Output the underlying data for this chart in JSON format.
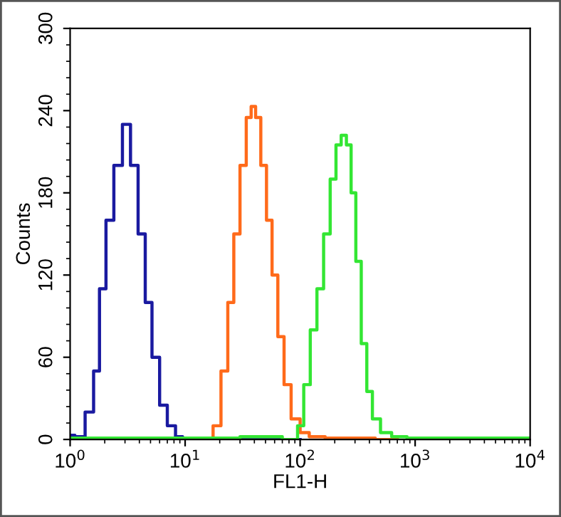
{
  "chart_data": {
    "type": "step",
    "xlabel": "FL1-H",
    "ylabel": "Counts",
    "log": "x",
    "grid": false,
    "legend": false,
    "marker": "none",
    "line_style": "solid",
    "xlim": [
      1,
      10000
    ],
    "xticks": [
      {
        "value": 1,
        "label": "10$^{0}$"
      },
      {
        "value": 10,
        "label": "10$^{1}$"
      },
      {
        "value": 100,
        "label": "10$^{2}$"
      },
      {
        "value": 1000,
        "label": "10$^{3}$"
      },
      {
        "value": 10000,
        "label": "10$^{4}$"
      }
    ],
    "ylim": [
      0,
      300
    ],
    "yticks": [
      0,
      60,
      120,
      180,
      240,
      300
    ],
    "series": [
      {
        "color": "#1a1aa0",
        "x": [
          1,
          1.2,
          1.5,
          1.7,
          1.9,
          2.2,
          2.6,
          3.1,
          3.6,
          4.2,
          4.8,
          5.5,
          6.5,
          7.5,
          9,
          10,
          100
        ],
        "values": [
          3,
          2,
          20,
          50,
          110,
          160,
          200,
          230,
          200,
          150,
          100,
          60,
          25,
          10,
          2,
          0,
          0
        ]
      },
      {
        "color": "#ff6a1a",
        "x": [
          10,
          16,
          19,
          22,
          25,
          28,
          32,
          36,
          39,
          43,
          48,
          54,
          60,
          68,
          77,
          90,
          110,
          130,
          200,
          700
        ],
        "values": [
          0,
          0,
          10,
          50,
          100,
          150,
          200,
          235,
          243,
          235,
          200,
          160,
          120,
          75,
          40,
          15,
          5,
          2,
          1,
          0
        ]
      },
      {
        "color": "#33e633",
        "x": [
          1,
          10,
          50,
          90,
          100,
          115,
          130,
          150,
          170,
          195,
          215,
          240,
          265,
          290,
          320,
          360,
          400,
          450,
          550,
          700,
          1000,
          10000
        ],
        "values": [
          1,
          1,
          2,
          0,
          10,
          40,
          80,
          110,
          150,
          190,
          215,
          222,
          215,
          180,
          130,
          70,
          35,
          15,
          5,
          2,
          1,
          1
        ]
      }
    ]
  }
}
